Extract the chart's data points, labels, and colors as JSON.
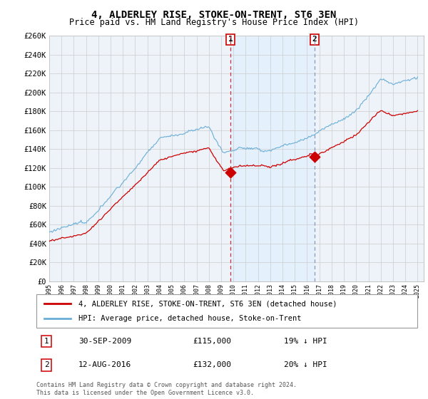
{
  "title": "4, ALDERLEY RISE, STOKE-ON-TRENT, ST6 3EN",
  "subtitle": "Price paid vs. HM Land Registry's House Price Index (HPI)",
  "ylim": [
    0,
    260000
  ],
  "yticks": [
    0,
    20000,
    40000,
    60000,
    80000,
    100000,
    120000,
    140000,
    160000,
    180000,
    200000,
    220000,
    240000,
    260000
  ],
  "hpi_color": "#6aaed6",
  "hpi_fill_color": "#ddeeff",
  "price_color": "#cc0000",
  "vline1_color": "#cc0000",
  "vline2_color": "#8888aa",
  "transaction1_year": 2009.75,
  "transaction2_year": 2016.62,
  "legend1_label": "4, ALDERLEY RISE, STOKE-ON-TRENT, ST6 3EN (detached house)",
  "legend2_label": "HPI: Average price, detached house, Stoke-on-Trent",
  "footer": "Contains HM Land Registry data © Crown copyright and database right 2024.\nThis data is licensed under the Open Government Licence v3.0."
}
